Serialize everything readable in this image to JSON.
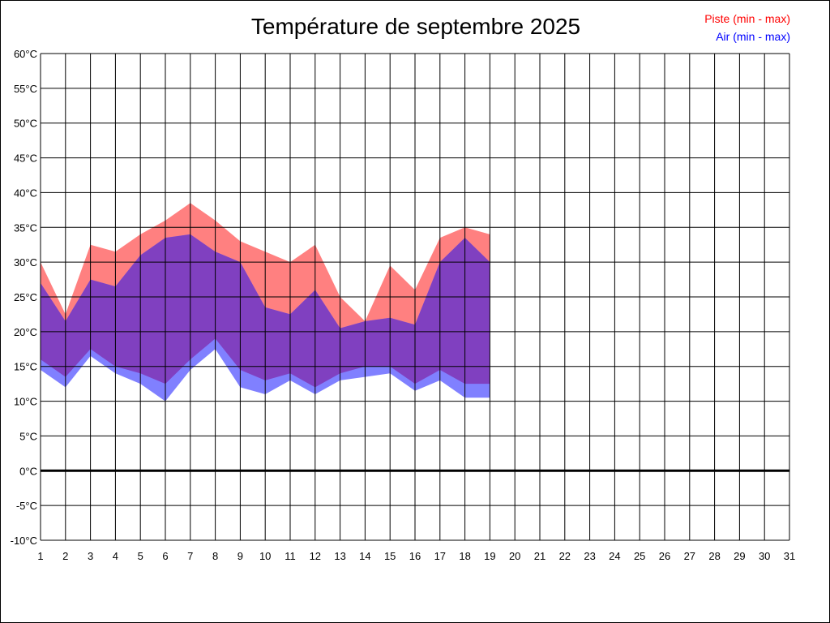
{
  "chart_data": {
    "type": "area",
    "title": "Température de septembre 2025",
    "xlabel": "",
    "ylabel": "",
    "x": [
      1,
      2,
      3,
      4,
      5,
      6,
      7,
      8,
      9,
      10,
      11,
      12,
      13,
      14,
      15,
      16,
      17,
      18,
      19,
      20,
      21,
      22,
      23,
      24,
      25,
      26,
      27,
      28,
      29,
      30,
      31
    ],
    "x_tick_labels": [
      "1",
      "2",
      "3",
      "4",
      "5",
      "6",
      "7",
      "8",
      "9",
      "10",
      "11",
      "12",
      "13",
      "14",
      "15",
      "16",
      "17",
      "18",
      "19",
      "20",
      "21",
      "22",
      "23",
      "24",
      "25",
      "26",
      "27",
      "28",
      "29",
      "30",
      "31"
    ],
    "xlim": [
      1,
      31
    ],
    "ylim": [
      -10,
      60
    ],
    "y_ticks": [
      60,
      55,
      50,
      45,
      40,
      35,
      30,
      25,
      20,
      15,
      10,
      5,
      0,
      -5,
      -10
    ],
    "y_tick_labels": [
      "60°C",
      "55°C",
      "50°C",
      "45°C",
      "40°C",
      "35°C",
      "30°C",
      "25°C",
      "20°C",
      "15°C",
      "10°C",
      "5°C",
      "0°C",
      "-5°C",
      "-10°C"
    ],
    "grid": true,
    "legend_position": "top-right",
    "series": [
      {
        "name": "Piste (min - max)",
        "color": "#ff8080",
        "min": [
          16.0,
          13.5,
          17.5,
          15.0,
          14.0,
          12.5,
          16.0,
          19.0,
          14.5,
          13.0,
          14.0,
          12.0,
          14.0,
          15.0,
          15.0,
          12.5,
          14.5,
          12.5,
          12.5
        ],
        "max": [
          30.0,
          22.5,
          32.5,
          31.5,
          34.0,
          36.0,
          38.5,
          36.0,
          33.0,
          31.5,
          30.0,
          32.5,
          25.0,
          21.5,
          29.5,
          26.0,
          33.5,
          35.0,
          34.0
        ]
      },
      {
        "name": "Air (min - max)",
        "color": "#8080ff",
        "min": [
          14.5,
          12.0,
          16.5,
          14.0,
          12.5,
          10.0,
          14.5,
          17.5,
          12.0,
          11.0,
          13.0,
          11.0,
          13.0,
          13.5,
          14.0,
          11.5,
          13.0,
          10.5,
          10.5
        ],
        "max": [
          27.0,
          21.5,
          27.5,
          26.5,
          31.0,
          33.5,
          34.0,
          31.5,
          30.0,
          23.5,
          22.5,
          26.0,
          20.5,
          21.5,
          22.0,
          21.0,
          30.0,
          33.5,
          30.0
        ]
      }
    ],
    "overlap_color": "#8040c0"
  }
}
